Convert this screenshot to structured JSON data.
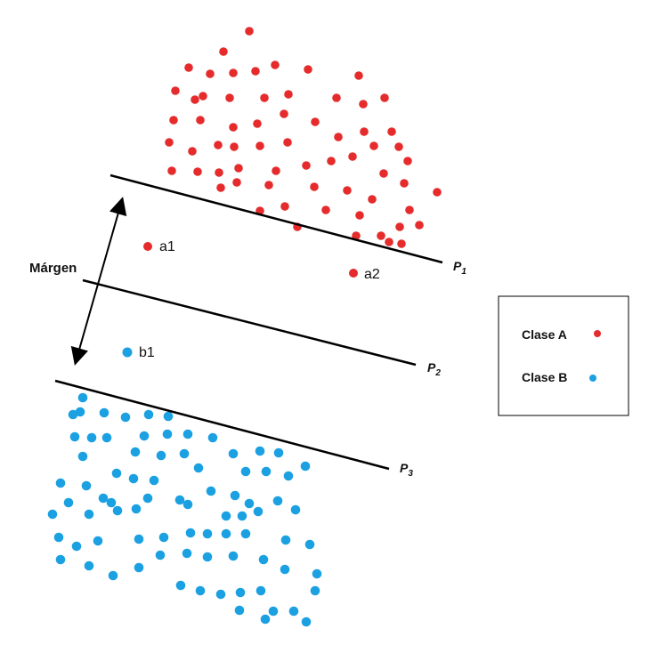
{
  "colors": {
    "clase_a": "#e52b2b",
    "clase_b": "#1ba1e2",
    "lines": "#000000"
  },
  "margin_label": "Márgen",
  "planes": [
    {
      "name": "P",
      "sub": "1"
    },
    {
      "name": "P",
      "sub": "2"
    },
    {
      "name": "P",
      "sub": "3"
    }
  ],
  "labeled_points": {
    "a1": "a1",
    "a2": "a2",
    "b1": "b1"
  },
  "legend": {
    "items": [
      {
        "label": "Clase A",
        "color_key": "clase_a"
      },
      {
        "label": "Clase B",
        "color_key": "clase_b"
      }
    ]
  }
}
